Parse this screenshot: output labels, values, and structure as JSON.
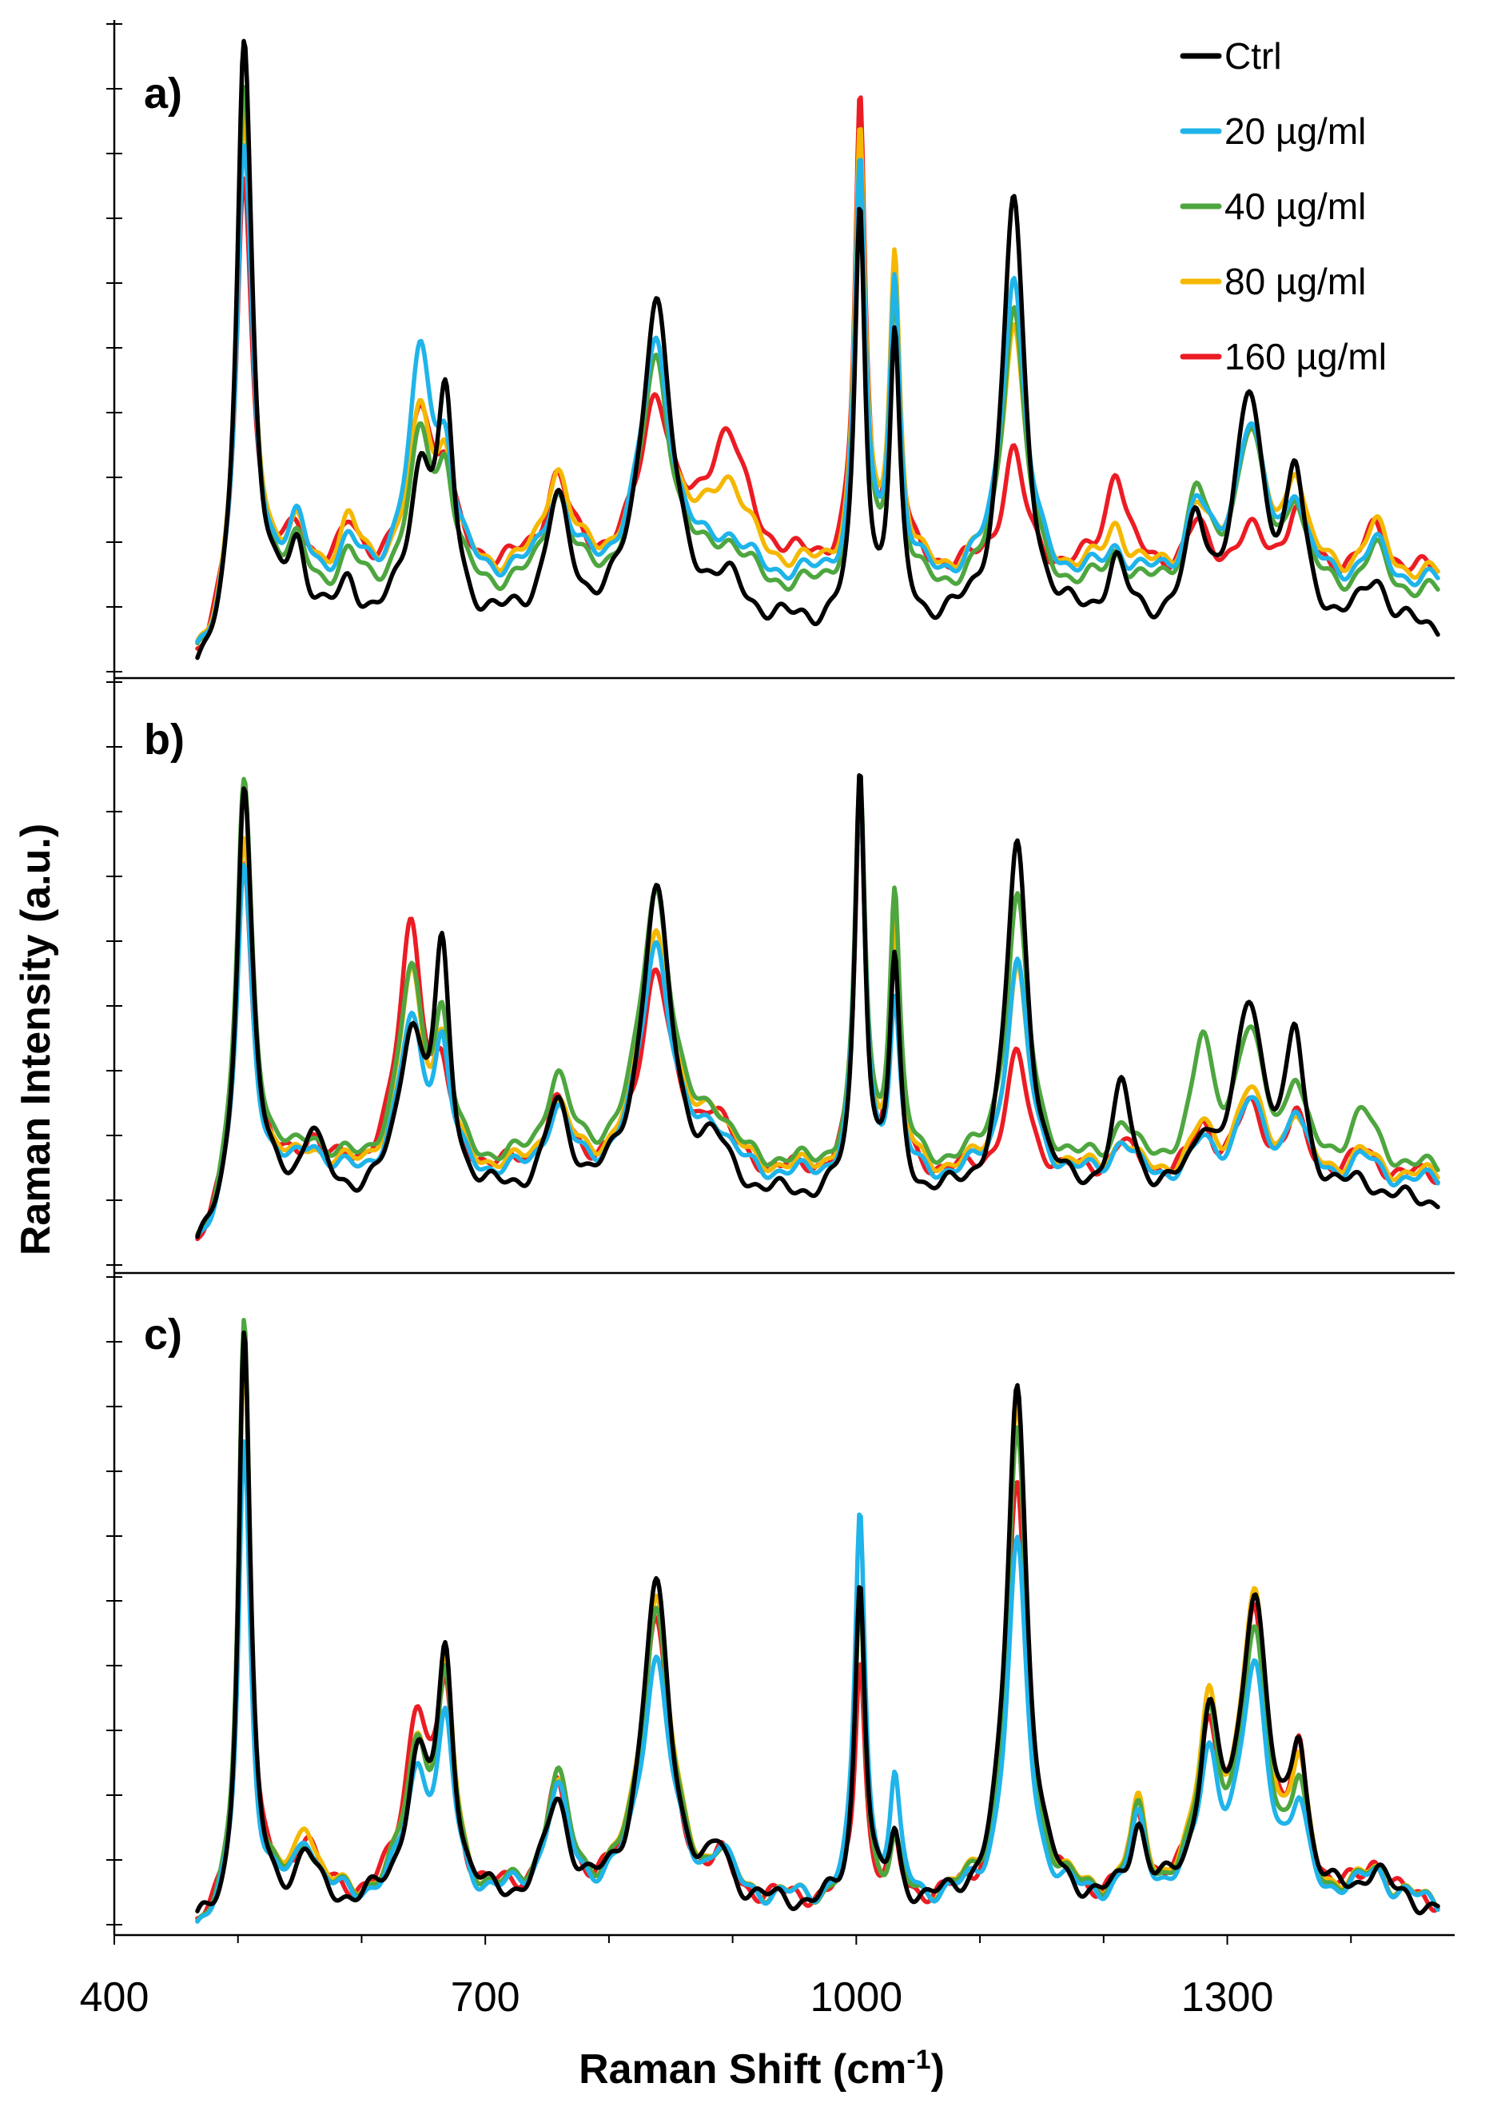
{
  "chart_data": {
    "type": "line",
    "xlabel_main": "Raman Shift (cm",
    "xlabel_sup": "-1",
    "xlabel_end": ")",
    "ylabel": "Raman Intensity (a.u.)",
    "xlim": [
      400,
      1500
    ],
    "x_ticks": [
      "400",
      "700",
      "1000",
      "1300"
    ],
    "x_tick_values": [
      400,
      700,
      1000,
      1300
    ],
    "legend": [
      {
        "name": "Ctrl",
        "color": "#000000"
      },
      {
        "name": "20 µg/ml",
        "color": "#1fb4ea"
      },
      {
        "name": "40 µg/ml",
        "color": "#4ea63f"
      },
      {
        "name": "80 µg/ml",
        "color": "#f5b800"
      },
      {
        "name": "160 µg/ml",
        "color": "#ec1c24"
      }
    ],
    "panels": [
      {
        "label": "a)",
        "baselines": {
          "Ctrl": 0.05,
          "20 µg/ml": 0.13,
          "40 µg/ml": 0.11,
          "80 µg/ml": 0.14,
          "160 µg/ml": 0.15
        },
        "peaks": [
          {
            "x": 505,
            "w": 8,
            "amps": {
              "Ctrl": 1.0,
              "20 µg/ml": 0.72,
              "40 µg/ml": 0.84,
              "80 µg/ml": 0.76,
              "160 µg/ml": 0.65
            }
          },
          {
            "x": 548,
            "w": 9,
            "amps": {
              "Ctrl": 0.12,
              "20 µg/ml": 0.08,
              "40 µg/ml": 0.06,
              "80 µg/ml": 0.06,
              "160 µg/ml": 0.05
            }
          },
          {
            "x": 590,
            "w": 9,
            "amps": {
              "Ctrl": 0.06,
              "20 µg/ml": 0.05,
              "40 µg/ml": 0.05,
              "80 µg/ml": 0.08,
              "160 µg/ml": 0.06
            }
          },
          {
            "x": 648,
            "w": 12,
            "amps": {
              "Ctrl": 0.25,
              "20 µg/ml": 0.37,
              "40 µg/ml": 0.25,
              "80 µg/ml": 0.26,
              "160 µg/ml": 0.27
            }
          },
          {
            "x": 668,
            "w": 8,
            "amps": {
              "Ctrl": 0.33,
              "20 µg/ml": 0.17,
              "40 µg/ml": 0.17,
              "80 µg/ml": 0.16,
              "160 µg/ml": 0.13
            }
          },
          {
            "x": 758,
            "w": 12,
            "amps": {
              "Ctrl": 0.2,
              "20 µg/ml": 0.14,
              "40 µg/ml": 0.16,
              "80 µg/ml": 0.17,
              "160 µg/ml": 0.15
            }
          },
          {
            "x": 838,
            "w": 15,
            "amps": {
              "Ctrl": 0.55,
              "20 µg/ml": 0.4,
              "40 µg/ml": 0.39,
              "80 µg/ml": 0.35,
              "160 µg/ml": 0.28
            }
          },
          {
            "x": 895,
            "w": 20,
            "amps": {
              "Ctrl": 0.06,
              "20 µg/ml": 0.06,
              "40 µg/ml": 0.07,
              "80 µg/ml": 0.15,
              "160 µg/ml": 0.22
            }
          },
          {
            "x": 1003,
            "w": 5,
            "amps": {
              "Ctrl": 0.7,
              "20 µg/ml": 0.7,
              "40 µg/ml": 0.72,
              "80 µg/ml": 0.74,
              "160 µg/ml": 0.78
            }
          },
          {
            "x": 1031,
            "w": 5,
            "amps": {
              "Ctrl": 0.47,
              "20 µg/ml": 0.5,
              "40 µg/ml": 0.5,
              "80 µg/ml": 0.53,
              "160 µg/ml": 0.46
            }
          },
          {
            "x": 1127,
            "w": 11,
            "amps": {
              "Ctrl": 0.72,
              "20 µg/ml": 0.52,
              "40 µg/ml": 0.49,
              "80 µg/ml": 0.43,
              "160 µg/ml": 0.2
            }
          },
          {
            "x": 1210,
            "w": 10,
            "amps": {
              "Ctrl": 0.1,
              "20 µg/ml": 0.05,
              "40 µg/ml": 0.06,
              "80 µg/ml": 0.08,
              "160 µg/ml": 0.17
            }
          },
          {
            "x": 1275,
            "w": 10,
            "amps": {
              "Ctrl": 0.16,
              "20 µg/ml": 0.12,
              "40 µg/ml": 0.16,
              "80 µg/ml": 0.1,
              "160 µg/ml": 0.07
            }
          },
          {
            "x": 1318,
            "w": 14,
            "amps": {
              "Ctrl": 0.38,
              "20 µg/ml": 0.26,
              "40 µg/ml": 0.27,
              "80 µg/ml": 0.24,
              "160 µg/ml": 0.06
            }
          },
          {
            "x": 1355,
            "w": 9,
            "amps": {
              "Ctrl": 0.23,
              "20 µg/ml": 0.13,
              "40 µg/ml": 0.14,
              "80 µg/ml": 0.16,
              "160 µg/ml": 0.1
            }
          },
          {
            "x": 1420,
            "w": 12,
            "amps": {
              "Ctrl": 0.08,
              "20 µg/ml": 0.06,
              "40 µg/ml": 0.07,
              "80 µg/ml": 0.08,
              "160 µg/ml": 0.07
            }
          }
        ]
      },
      {
        "label": "b)",
        "baselines": {
          "Ctrl": 0.08,
          "20 µg/ml": 0.12,
          "40 µg/ml": 0.14,
          "80 µg/ml": 0.13,
          "160 µg/ml": 0.13
        },
        "peaks": [
          {
            "x": 505,
            "w": 8,
            "amps": {
              "Ctrl": 0.78,
              "20 µg/ml": 0.58,
              "40 µg/ml": 0.72,
              "80 µg/ml": 0.62,
              "160 µg/ml": 0.58
            }
          },
          {
            "x": 560,
            "w": 10,
            "amps": {
              "Ctrl": 0.12,
              "20 µg/ml": 0.06,
              "40 µg/ml": 0.05,
              "80 µg/ml": 0.04,
              "160 µg/ml": 0.06
            }
          },
          {
            "x": 640,
            "w": 12,
            "amps": {
              "Ctrl": 0.3,
              "20 µg/ml": 0.28,
              "40 µg/ml": 0.35,
              "80 µg/ml": 0.36,
              "160 µg/ml": 0.46
            }
          },
          {
            "x": 665,
            "w": 8,
            "amps": {
              "Ctrl": 0.42,
              "20 µg/ml": 0.22,
              "40 µg/ml": 0.24,
              "80 µg/ml": 0.2,
              "160 µg/ml": 0.14
            }
          },
          {
            "x": 758,
            "w": 12,
            "amps": {
              "Ctrl": 0.16,
              "20 µg/ml": 0.12,
              "40 µg/ml": 0.16,
              "80 µg/ml": 0.12,
              "160 µg/ml": 0.12
            }
          },
          {
            "x": 838,
            "w": 15,
            "amps": {
              "Ctrl": 0.57,
              "20 µg/ml": 0.44,
              "40 µg/ml": 0.52,
              "80 µg/ml": 0.45,
              "160 µg/ml": 0.38
            }
          },
          {
            "x": 885,
            "w": 15,
            "amps": {
              "Ctrl": 0.08,
              "20 µg/ml": 0.08,
              "40 µg/ml": 0.08,
              "80 µg/ml": 0.1,
              "160 µg/ml": 0.1
            }
          },
          {
            "x": 1003,
            "w": 5,
            "amps": {
              "Ctrl": 0.8,
              "20 µg/ml": 0.72,
              "40 µg/ml": 0.72,
              "80 µg/ml": 0.72,
              "160 µg/ml": 0.7
            }
          },
          {
            "x": 1031,
            "w": 5,
            "amps": {
              "Ctrl": 0.42,
              "20 µg/ml": 0.32,
              "40 µg/ml": 0.5,
              "80 µg/ml": 0.45,
              "160 µg/ml": 0.4
            }
          },
          {
            "x": 1130,
            "w": 11,
            "amps": {
              "Ctrl": 0.66,
              "20 µg/ml": 0.4,
              "40 µg/ml": 0.5,
              "80 µg/ml": 0.38,
              "160 µg/ml": 0.22
            }
          },
          {
            "x": 1215,
            "w": 10,
            "amps": {
              "Ctrl": 0.2,
              "20 µg/ml": 0.07,
              "40 µg/ml": 0.08,
              "80 µg/ml": 0.06,
              "160 µg/ml": 0.06
            }
          },
          {
            "x": 1280,
            "w": 10,
            "amps": {
              "Ctrl": 0.1,
              "20 µg/ml": 0.06,
              "40 µg/ml": 0.22,
              "80 µg/ml": 0.08,
              "160 µg/ml": 0.08
            }
          },
          {
            "x": 1318,
            "w": 14,
            "amps": {
              "Ctrl": 0.36,
              "20 µg/ml": 0.14,
              "40 µg/ml": 0.24,
              "80 µg/ml": 0.15,
              "160 µg/ml": 0.12
            }
          },
          {
            "x": 1355,
            "w": 9,
            "amps": {
              "Ctrl": 0.28,
              "20 µg/ml": 0.12,
              "40 µg/ml": 0.14,
              "80 µg/ml": 0.1,
              "160 µg/ml": 0.1
            }
          },
          {
            "x": 1410,
            "w": 14,
            "amps": {
              "Ctrl": 0.03,
              "20 µg/ml": 0.04,
              "40 µg/ml": 0.1,
              "80 µg/ml": 0.04,
              "160 µg/ml": 0.04
            }
          }
        ]
      },
      {
        "label": "c)",
        "baselines": {
          "Ctrl": 0.02,
          "20 µg/ml": 0.03,
          "40 µg/ml": 0.03,
          "80 µg/ml": 0.03,
          "160 µg/ml": 0.03
        },
        "peaks": [
          {
            "x": 505,
            "w": 6,
            "amps": {
              "Ctrl": 0.95,
              "20 µg/ml": 0.76,
              "40 µg/ml": 0.96,
              "80 µg/ml": 0.92,
              "160 µg/ml": 0.94
            }
          },
          {
            "x": 555,
            "w": 10,
            "amps": {
              "Ctrl": 0.08,
              "20 µg/ml": 0.1,
              "40 µg/ml": 0.09,
              "80 µg/ml": 0.12,
              "160 µg/ml": 0.1
            }
          },
          {
            "x": 645,
            "w": 12,
            "amps": {
              "Ctrl": 0.22,
              "20 µg/ml": 0.2,
              "40 µg/ml": 0.24,
              "80 µg/ml": 0.24,
              "160 µg/ml": 0.3
            }
          },
          {
            "x": 668,
            "w": 8,
            "amps": {
              "Ctrl": 0.38,
              "20 µg/ml": 0.26,
              "40 µg/ml": 0.32,
              "80 µg/ml": 0.34,
              "160 µg/ml": 0.3
            }
          },
          {
            "x": 758,
            "w": 12,
            "amps": {
              "Ctrl": 0.16,
              "20 µg/ml": 0.17,
              "40 µg/ml": 0.19,
              "80 µg/ml": 0.17,
              "160 µg/ml": 0.17
            }
          },
          {
            "x": 838,
            "w": 14,
            "amps": {
              "Ctrl": 0.52,
              "20 µg/ml": 0.4,
              "40 µg/ml": 0.48,
              "80 µg/ml": 0.5,
              "160 µg/ml": 0.46
            }
          },
          {
            "x": 890,
            "w": 10,
            "amps": {
              "Ctrl": 0.07,
              "20 µg/ml": 0.07,
              "40 µg/ml": 0.06,
              "80 µg/ml": 0.06,
              "160 µg/ml": 0.05
            }
          },
          {
            "x": 1003,
            "w": 5,
            "amps": {
              "Ctrl": 0.54,
              "20 µg/ml": 0.64,
              "40 µg/ml": 0.5,
              "80 µg/ml": 0.5,
              "160 µg/ml": 0.4
            }
          },
          {
            "x": 1031,
            "w": 5,
            "amps": {
              "Ctrl": 0.1,
              "20 µg/ml": 0.18,
              "40 µg/ml": 0.08,
              "80 µg/ml": 0.08,
              "160 µg/ml": 0.08
            }
          },
          {
            "x": 1130,
            "w": 10,
            "amps": {
              "Ctrl": 0.86,
              "20 µg/ml": 0.58,
              "40 µg/ml": 0.76,
              "80 µg/ml": 0.8,
              "160 µg/ml": 0.68
            }
          },
          {
            "x": 1228,
            "w": 8,
            "amps": {
              "Ctrl": 0.12,
              "20 µg/ml": 0.12,
              "40 µg/ml": 0.13,
              "80 µg/ml": 0.14,
              "160 µg/ml": 0.13
            }
          },
          {
            "x": 1285,
            "w": 10,
            "amps": {
              "Ctrl": 0.28,
              "20 µg/ml": 0.22,
              "40 µg/ml": 0.28,
              "80 µg/ml": 0.3,
              "160 µg/ml": 0.26
            }
          },
          {
            "x": 1322,
            "w": 13,
            "amps": {
              "Ctrl": 0.5,
              "20 µg/ml": 0.37,
              "40 µg/ml": 0.42,
              "80 µg/ml": 0.48,
              "160 µg/ml": 0.46
            }
          },
          {
            "x": 1358,
            "w": 8,
            "amps": {
              "Ctrl": 0.23,
              "20 µg/ml": 0.12,
              "40 µg/ml": 0.15,
              "80 µg/ml": 0.18,
              "160 µg/ml": 0.2
            }
          },
          {
            "x": 1420,
            "w": 12,
            "amps": {
              "Ctrl": 0.06,
              "20 µg/ml": 0.05,
              "40 µg/ml": 0.05,
              "80 µg/ml": 0.05,
              "160 µg/ml": 0.06
            }
          }
        ]
      }
    ]
  }
}
